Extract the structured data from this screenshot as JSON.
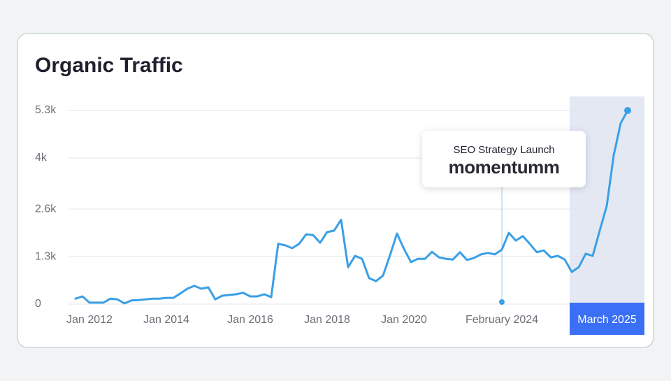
{
  "chart_data": {
    "type": "line",
    "title": "Organic Traffic",
    "color": "#3a9fe6",
    "grid": true,
    "categories": [
      null,
      null,
      "Jan 2012",
      null,
      null,
      null,
      null,
      null,
      null,
      null,
      null,
      null,
      null,
      "Jan 2014",
      null,
      null,
      null,
      null,
      null,
      null,
      null,
      null,
      null,
      null,
      null,
      "Jan 2016",
      null,
      null,
      null,
      null,
      null,
      null,
      null,
      null,
      null,
      null,
      "Jan 2018",
      null,
      null,
      null,
      null,
      null,
      null,
      null,
      null,
      null,
      null,
      "Jan 2020",
      null,
      null,
      null,
      null,
      null,
      null,
      null,
      null,
      null,
      null,
      null,
      null,
      null,
      "February 2024",
      null,
      null,
      null,
      null,
      null,
      null,
      null,
      null,
      null,
      null,
      null,
      null,
      null,
      null,
      "March 2025",
      null,
      null,
      null
    ],
    "values": [
      150,
      210,
      40,
      40,
      40,
      150,
      130,
      20,
      100,
      110,
      130,
      150,
      150,
      170,
      170,
      290,
      420,
      500,
      420,
      460,
      130,
      230,
      250,
      270,
      310,
      210,
      210,
      270,
      190,
      1650,
      1610,
      1530,
      1650,
      1910,
      1890,
      1680,
      1970,
      2010,
      2310,
      1010,
      1320,
      1240,
      710,
      630,
      780,
      1340,
      1930,
      1510,
      1150,
      1240,
      1240,
      1430,
      1280,
      1240,
      1220,
      1420,
      1210,
      1260,
      1360,
      1400,
      1360,
      1490,
      1950,
      1740,
      1860,
      1650,
      1420,
      1470,
      1280,
      1320,
      1220,
      880,
      1010,
      1380,
      1320,
      2010,
      2680,
      4070,
      4950,
      5300
    ],
    "ylim": [
      0,
      5300
    ],
    "yticks": [
      0,
      {
        "value": 1300,
        "label": "1.3k"
      },
      {
        "value": 2600,
        "label": "2.6k"
      },
      {
        "value": 4000,
        "label": "4k"
      },
      {
        "value": 5300,
        "label": "5.3k"
      }
    ],
    "annotation": {
      "index": 61,
      "label": "SEO Strategy Launch",
      "brand": "momentumm"
    }
  }
}
